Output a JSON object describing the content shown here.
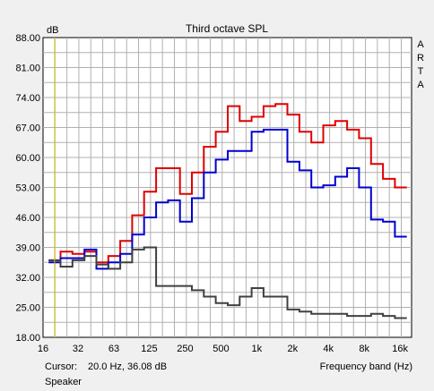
{
  "chart_data": {
    "type": "line",
    "title": "Third octave SPL",
    "ylabel": "dB",
    "xlabel": "Frequency band (Hz)",
    "side_label": [
      "A",
      "R",
      "T",
      "A"
    ],
    "y_ticks": [
      "88.00",
      "81.00",
      "74.00",
      "67.00",
      "60.00",
      "53.00",
      "46.00",
      "39.00",
      "32.00",
      "25.00",
      "18.00"
    ],
    "x_tick_labels": [
      "16",
      "32",
      "63",
      "125",
      "250",
      "500",
      "1k",
      "2k",
      "4k",
      "8k",
      "16k"
    ],
    "ylim": [
      18,
      88
    ],
    "grid": true,
    "bands": [
      "20",
      "25",
      "31.5",
      "40",
      "50",
      "63",
      "80",
      "100",
      "125",
      "160",
      "200",
      "250",
      "315",
      "400",
      "500",
      "630",
      "800",
      "1k",
      "1.25k",
      "1.6k",
      "2k",
      "2.5k",
      "3.15k",
      "4k",
      "5k",
      "6.3k",
      "8k",
      "10k",
      "12.5k",
      "16k"
    ],
    "series": [
      {
        "color": "#e00000",
        "values": [
          36,
          38,
          37.5,
          38,
          35.5,
          37,
          40.5,
          46.5,
          52,
          57.5,
          57.5,
          51.5,
          56.5,
          62.5,
          66,
          72,
          68.5,
          69.5,
          72,
          72.5,
          70,
          66,
          63.5,
          67.5,
          68.5,
          66.5,
          64.5,
          58.5,
          55,
          53
        ]
      },
      {
        "color": "#0000d0",
        "values": [
          35.5,
          36.5,
          36.5,
          38.5,
          34,
          35.5,
          37.5,
          42,
          46,
          49.5,
          50,
          45,
          50.5,
          56.5,
          59.5,
          61.5,
          61.5,
          66,
          66.5,
          66.5,
          59,
          57,
          53,
          53.5,
          55.5,
          57.5,
          53,
          45.5,
          45,
          41.5
        ]
      },
      {
        "color": "#404040",
        "values": [
          36,
          34.5,
          36,
          37,
          35,
          34,
          35.5,
          38.5,
          39,
          30,
          30,
          30,
          29,
          27.5,
          26,
          25.5,
          27.5,
          29.5,
          27.5,
          27.5,
          24.5,
          24,
          23.5,
          23.5,
          23.5,
          23,
          23,
          23.5,
          23,
          22.5
        ]
      }
    ],
    "cursor": {
      "x": 20
    }
  },
  "cursor_label": "Cursor:",
  "cursor_value": "20.0 Hz, 36.08 dB",
  "status_text": "Speaker"
}
